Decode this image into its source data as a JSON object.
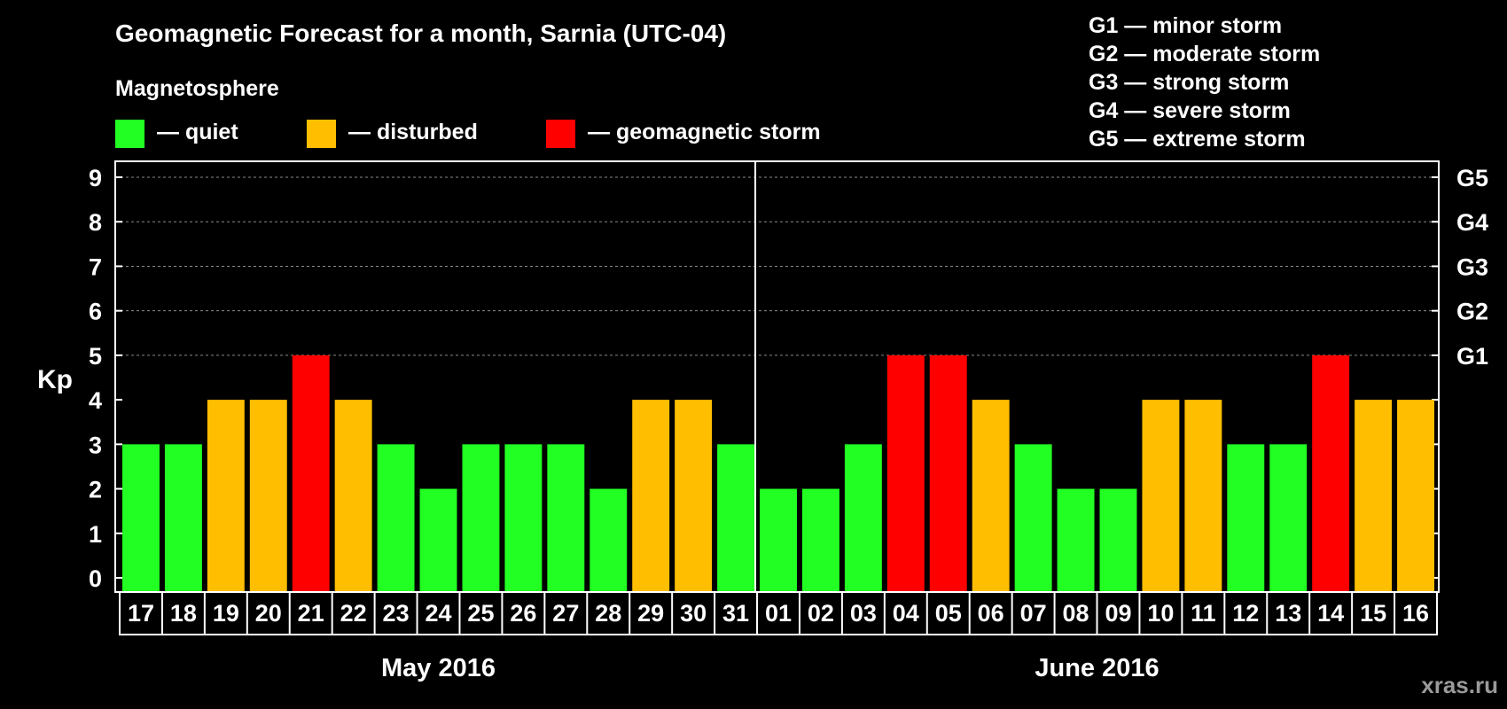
{
  "title": "Geomagnetic Forecast for a month, Sarnia (UTC-04)",
  "legend": {
    "heading": "Magnetosphere",
    "items": [
      {
        "label": "— quiet",
        "color": "#22ff22"
      },
      {
        "label": "— disturbed",
        "color": "#ffbf00"
      },
      {
        "label": "— geomagnetic storm",
        "color": "#ff0000"
      }
    ]
  },
  "storm_scale": [
    "G1 — minor storm",
    "G2 — moderate storm",
    "G3 — strong storm",
    "G4 — severe storm",
    "G5 — extreme storm"
  ],
  "watermark": "xras.ru",
  "chart_data": {
    "type": "bar",
    "ylabel": "Kp",
    "ylim": [
      0,
      9
    ],
    "yticks": [
      0,
      1,
      2,
      3,
      4,
      5,
      6,
      7,
      8,
      9
    ],
    "right_axis_labels": [
      {
        "kp": 5,
        "label": "G1"
      },
      {
        "kp": 6,
        "label": "G2"
      },
      {
        "kp": 7,
        "label": "G3"
      },
      {
        "kp": 8,
        "label": "G4"
      },
      {
        "kp": 9,
        "label": "G5"
      }
    ],
    "categories": [
      "17",
      "18",
      "19",
      "20",
      "21",
      "22",
      "23",
      "24",
      "25",
      "26",
      "27",
      "28",
      "29",
      "30",
      "31",
      "01",
      "02",
      "03",
      "04",
      "05",
      "06",
      "07",
      "08",
      "09",
      "10",
      "11",
      "12",
      "13",
      "14",
      "15",
      "16"
    ],
    "values": [
      3,
      3,
      4,
      4,
      5,
      4,
      3,
      2,
      3,
      3,
      3,
      2,
      4,
      4,
      3,
      2,
      2,
      3,
      5,
      5,
      4,
      3,
      2,
      2,
      4,
      4,
      3,
      3,
      5,
      4,
      4
    ],
    "months": [
      {
        "label": "May 2016",
        "start": 0,
        "count": 15
      },
      {
        "label": "June 2016",
        "start": 15,
        "count": 16
      }
    ],
    "grid": "dashed horizontal at Kp 5-9",
    "colors": {
      "quiet": "#22ff22",
      "disturbed": "#ffbf00",
      "storm": "#ff0000"
    }
  }
}
